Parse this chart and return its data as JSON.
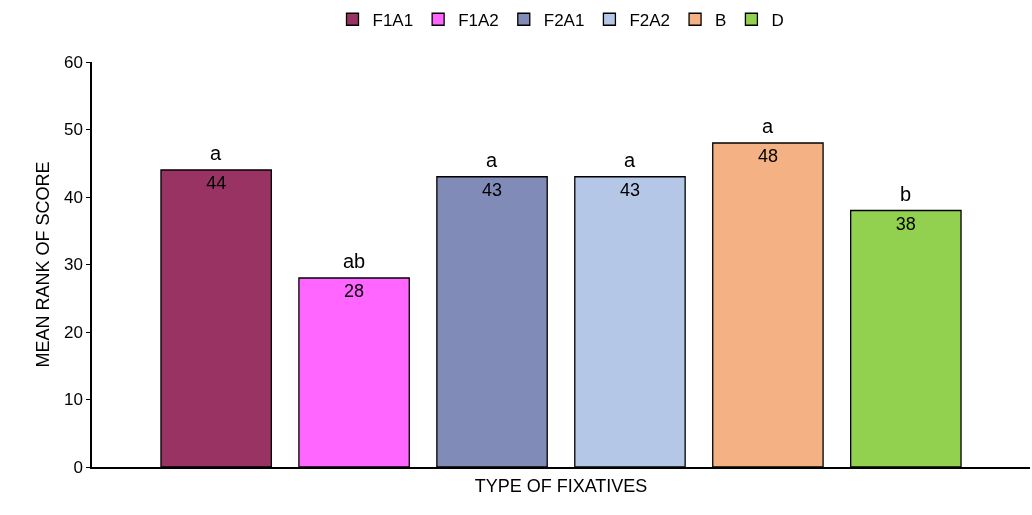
{
  "chart_data": {
    "type": "bar",
    "xlabel": "TYPE OF FIXATIVES",
    "ylabel": "MEAN RANK OF SCORE",
    "categories": [
      null,
      null,
      null,
      null,
      null,
      null
    ],
    "series": [
      {
        "name": "F1A1",
        "color": "#983363",
        "values": [
          44,
          null,
          null,
          null,
          null,
          null
        ]
      },
      {
        "name": "F1A2",
        "color": "#ff66ff",
        "values": [
          null,
          28,
          null,
          null,
          null,
          null
        ]
      },
      {
        "name": "F2A1",
        "color": "#808bb8",
        "values": [
          null,
          null,
          43,
          null,
          null,
          null
        ]
      },
      {
        "name": "F2A2",
        "color": "#b4c7e7",
        "values": [
          null,
          null,
          null,
          43,
          null,
          null
        ]
      },
      {
        "name": "B",
        "color": "#f4b183",
        "values": [
          null,
          null,
          null,
          null,
          48,
          null
        ]
      },
      {
        "name": "D",
        "color": "#92d050",
        "values": [
          null,
          null,
          null,
          null,
          null,
          38
        ]
      }
    ],
    "annotations": [
      {
        "text": "a",
        "y": 44
      },
      {
        "text": "ab",
        "y": 28
      },
      {
        "text": "a",
        "y": 43
      },
      {
        "text": "a",
        "y": 43
      },
      {
        "text": "a",
        "y": 48
      },
      {
        "text": "b",
        "y": 38
      }
    ],
    "data_labels": true,
    "ylim": [
      0,
      60
    ],
    "yticks": [
      0,
      10,
      20,
      30,
      40,
      50,
      60
    ],
    "legend": "top",
    "tick_labels": "y"
  }
}
